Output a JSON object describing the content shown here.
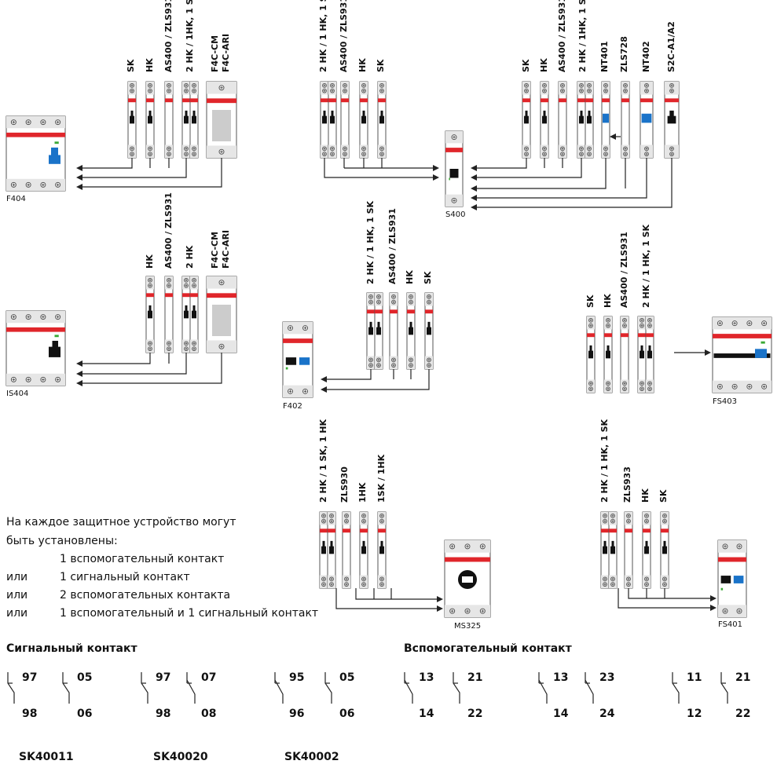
{
  "devices": {
    "F404": "F404",
    "S400": "S400",
    "IS404": "IS404",
    "F402": "F402",
    "FS403": "FS403",
    "MS325": "MS325",
    "FS401": "FS401"
  },
  "accessories": {
    "f404": [
      "SK",
      "HK",
      "AS400 / ZLS931",
      "2 HK / 1HK, 1 SK",
      "F4C-CM",
      "F4C-ARI"
    ],
    "s400_left": [
      "2 HK / 1 HK, 1 SK",
      "AS400 / ZLS931",
      "HK",
      "SK"
    ],
    "s400_right": [
      "SK",
      "HK",
      "AS400 / ZLS931",
      "2 HK / 1HK, 1 SK",
      "NT401",
      "ZLS728",
      "NT402",
      "S2C-A1/A2"
    ],
    "is404": [
      "HK",
      "AS400 / ZLS931",
      "2 HK",
      "F4C-CM",
      "F4C-ARI"
    ],
    "f402": [
      "2 HK / 1 HK, 1 SK",
      "AS400 / ZLS931",
      "HK",
      "SK"
    ],
    "fs403": [
      "SK",
      "HK",
      "AS400 / ZLS931",
      "2 HK / 1 HK, 1 SK"
    ],
    "ms325": [
      "2 HK / 1 SK, 1 HK",
      "ZLS930",
      "1HK",
      "1SK / 1HK"
    ],
    "fs401": [
      "2 HK / 1 HK, 1 SK",
      "ZLS933",
      "HK",
      "SK"
    ]
  },
  "notes": {
    "intro1": "На каждое защитное устройство могут",
    "intro2": "быть установлены:",
    "rows": [
      {
        "prefix": "",
        "text": "1 вспомогательный контакт"
      },
      {
        "prefix": "или",
        "text": "1 сигнальный контакт"
      },
      {
        "prefix": "или",
        "text": "2 вспомогательных контакта"
      },
      {
        "prefix": "или",
        "text": "1 вспомогательный и 1 сигнальный контакт"
      }
    ]
  },
  "sections": {
    "signal": "Сигнальный контакт",
    "aux": "Вспомогательный контакт"
  },
  "contacts": [
    {
      "top": "97",
      "bottom": "98",
      "style": "nc"
    },
    {
      "top": "05",
      "bottom": "06",
      "style": "nc"
    },
    {
      "top": "97",
      "bottom": "98",
      "style": "nc"
    },
    {
      "top": "07",
      "bottom": "08",
      "style": "no"
    },
    {
      "top": "95",
      "bottom": "96",
      "style": "no"
    },
    {
      "top": "05",
      "bottom": "06",
      "style": "nc"
    },
    {
      "top": "13",
      "bottom": "14",
      "style": "no"
    },
    {
      "top": "21",
      "bottom": "22",
      "style": "nc"
    },
    {
      "top": "13",
      "bottom": "14",
      "style": "no"
    },
    {
      "top": "23",
      "bottom": "24",
      "style": "no"
    },
    {
      "top": "11",
      "bottom": "12",
      "style": "nc"
    },
    {
      "top": "21",
      "bottom": "22",
      "style": "nc"
    }
  ],
  "codes": [
    "SK40011",
    "SK40020",
    "SK40002"
  ],
  "colors": {
    "red": "#e0262b",
    "blue": "#1a73c9",
    "green": "#3aa935",
    "gray": "#e6e6e6",
    "line": "#222222"
  }
}
